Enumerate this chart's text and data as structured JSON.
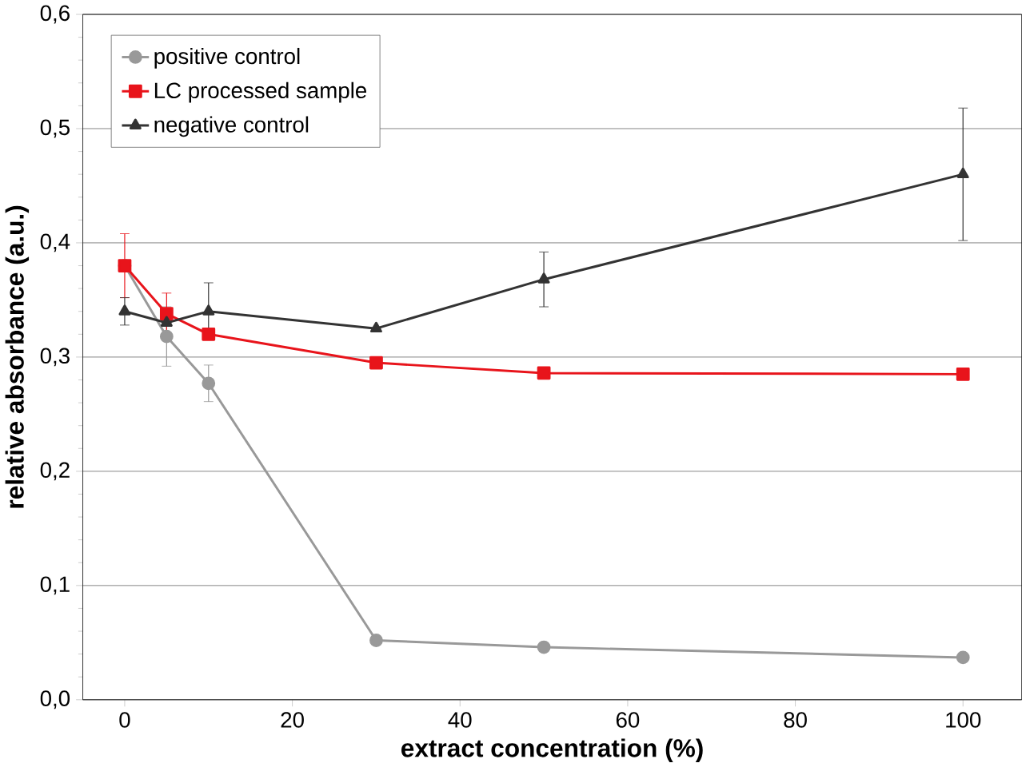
{
  "chart_data": {
    "type": "line",
    "xlabel": "extract concentration (%)",
    "ylabel": "relative absorbance (a.u.)",
    "xlim": [
      -5,
      107
    ],
    "ylim": [
      0,
      0.6
    ],
    "xticks": [
      0,
      20,
      40,
      60,
      80,
      100
    ],
    "yticks": [
      {
        "value": 0,
        "label": "0,0"
      },
      {
        "value": 0.1,
        "label": "0,1"
      },
      {
        "value": 0.2,
        "label": "0,2"
      },
      {
        "value": 0.3,
        "label": "0,3"
      },
      {
        "value": 0.4,
        "label": "0,4"
      },
      {
        "value": 0.5,
        "label": "0,5"
      },
      {
        "value": 0.6,
        "label": "0,6"
      }
    ],
    "grid": "y",
    "legend": "top left",
    "x": [
      0,
      5,
      10,
      30,
      50,
      100
    ],
    "series": [
      {
        "name": "positive control",
        "color": "#999999",
        "marker": "circle",
        "values": [
          0.38,
          0.318,
          0.277,
          0.052,
          0.046,
          0.037
        ],
        "errors": [
          null,
          0.026,
          0.016,
          null,
          null,
          null
        ]
      },
      {
        "name": "LC processed sample",
        "color": "#e8141b",
        "marker": "square",
        "values": [
          0.38,
          0.338,
          0.32,
          0.295,
          0.286,
          0.285
        ],
        "errors": [
          0.028,
          0.018,
          null,
          null,
          null,
          null
        ]
      },
      {
        "name": "negative control",
        "color": "#333333",
        "marker": "triangle",
        "values": [
          0.34,
          0.33,
          0.34,
          0.325,
          0.368,
          0.46
        ],
        "errors": [
          0.012,
          null,
          0.025,
          null,
          0.024,
          0.058
        ]
      }
    ]
  }
}
